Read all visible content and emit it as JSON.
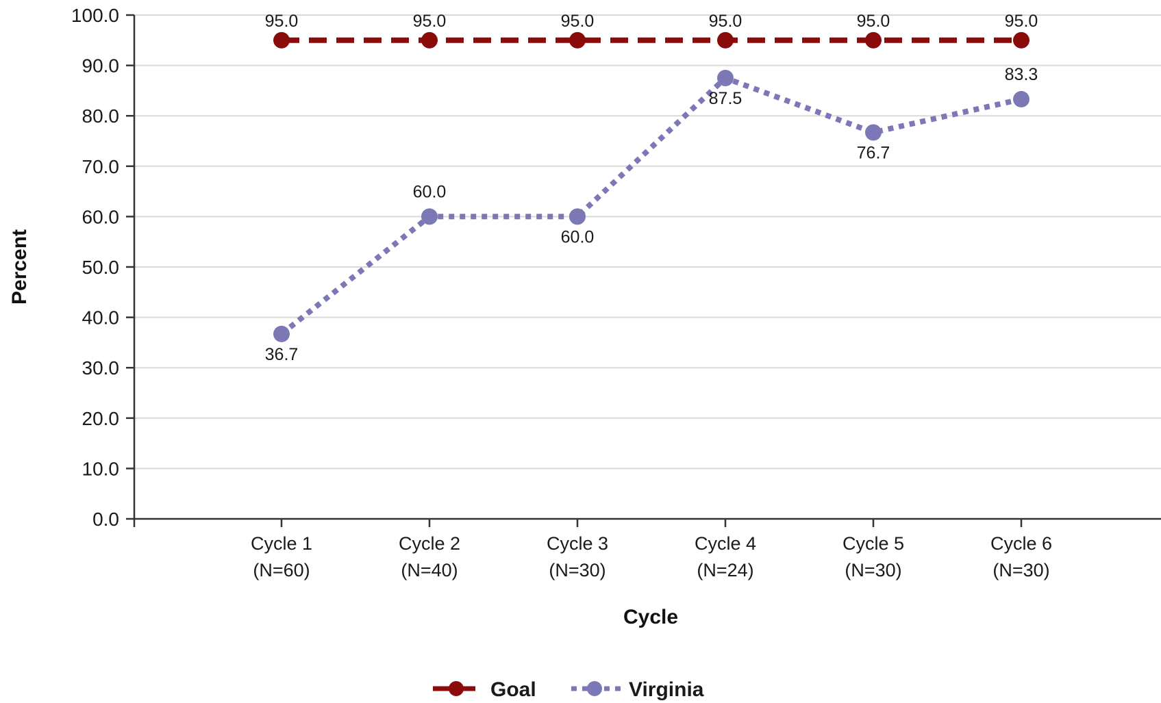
{
  "chart_data": {
    "type": "line",
    "categories": [
      "Cycle 1",
      "Cycle 2",
      "Cycle 3",
      "Cycle 4",
      "Cycle 5",
      "Cycle 6"
    ],
    "category_n": [
      "(N=60)",
      "(N=40)",
      "(N=30)",
      "(N=24)",
      "(N=30)",
      "(N=30)"
    ],
    "series": [
      {
        "name": "Goal",
        "values": [
          95.0,
          95.0,
          95.0,
          95.0,
          95.0,
          95.0
        ],
        "color": "#8b0a0a",
        "line_style": "dashed"
      },
      {
        "name": "Virginia",
        "values": [
          36.7,
          60.0,
          60.0,
          87.5,
          76.7,
          83.3
        ],
        "color": "#7b78b5",
        "line_style": "dotted"
      }
    ],
    "xlabel": "Cycle",
    "ylabel": "Percent",
    "ylim": [
      0,
      100
    ],
    "yticks": [
      "0.0",
      "10.0",
      "20.0",
      "30.0",
      "40.0",
      "50.0",
      "60.0",
      "70.0",
      "80.0",
      "90.0",
      "100.0"
    ],
    "grid": true,
    "legend_position": "bottom-center",
    "data_labels": true
  }
}
